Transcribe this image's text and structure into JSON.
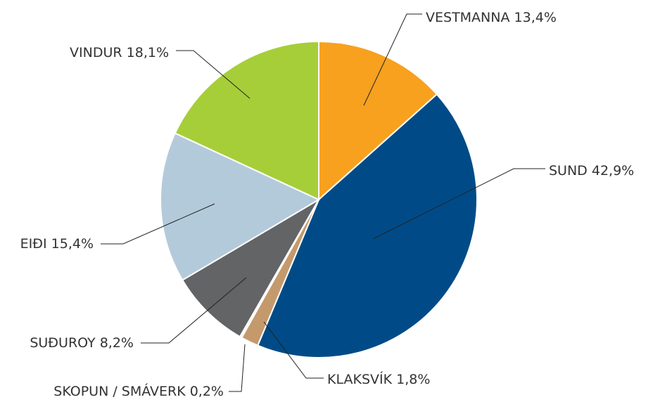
{
  "chart_data": {
    "type": "pie",
    "categories": [
      "VESTMANNA",
      "SUND",
      "KLAKSVÍK",
      "SKOPUN / SMÁVERK",
      "SUÐUROY",
      "EIÐI",
      "VINDUR"
    ],
    "values": [
      13.4,
      42.9,
      1.8,
      0.2,
      8.2,
      15.4,
      18.1
    ],
    "value_labels": [
      "13,4%",
      "42,9%",
      "1,8%",
      "0,2%",
      "8,2%",
      "15,4%",
      "18,1%"
    ],
    "colors": [
      "#f7a11f",
      "#004b87",
      "#c49a6c",
      "#e8e8e8",
      "#636466",
      "#b3cadb",
      "#a6ce39"
    ]
  }
}
